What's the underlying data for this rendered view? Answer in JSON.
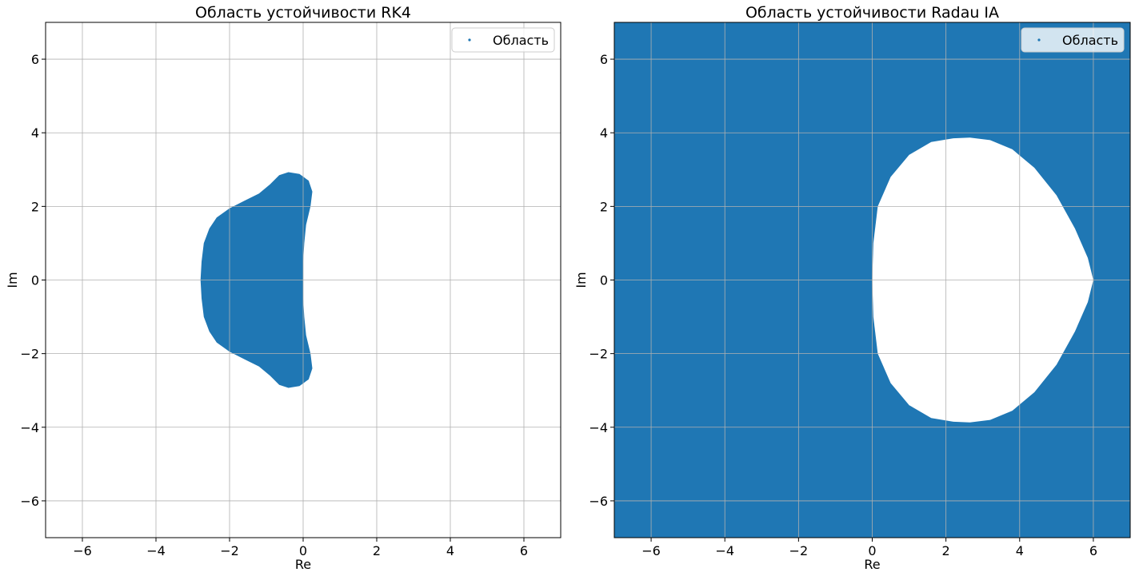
{
  "chart_data": [
    {
      "type": "scatter",
      "title": "Область устойчивости RK4",
      "xlabel": "Re",
      "ylabel": "Im",
      "xlim": [
        -7,
        7
      ],
      "ylim": [
        -7,
        7
      ],
      "xticks": [
        -6,
        -4,
        -2,
        0,
        2,
        4,
        6
      ],
      "yticks": [
        -6,
        -4,
        -2,
        0,
        2,
        4,
        6
      ],
      "grid": true,
      "legend_position": "top-right",
      "series": [
        {
          "name": "Область",
          "color": "#1f77b4",
          "fill": "inside",
          "boundary": [
            [
              -2.79,
              0.0
            ],
            [
              -2.76,
              0.5
            ],
            [
              -2.7,
              1.0
            ],
            [
              -2.55,
              1.4
            ],
            [
              -2.35,
              1.7
            ],
            [
              -2.0,
              1.95
            ],
            [
              -1.6,
              2.15
            ],
            [
              -1.2,
              2.35
            ],
            [
              -0.9,
              2.6
            ],
            [
              -0.65,
              2.85
            ],
            [
              -0.4,
              2.93
            ],
            [
              -0.1,
              2.88
            ],
            [
              0.15,
              2.7
            ],
            [
              0.25,
              2.4
            ],
            [
              0.2,
              2.0
            ],
            [
              0.08,
              1.5
            ],
            [
              0.03,
              1.0
            ],
            [
              0.0,
              0.5
            ],
            [
              0.0,
              0.0
            ],
            [
              0.0,
              -0.5
            ],
            [
              0.03,
              -1.0
            ],
            [
              0.08,
              -1.5
            ],
            [
              0.2,
              -2.0
            ],
            [
              0.25,
              -2.4
            ],
            [
              0.15,
              -2.7
            ],
            [
              -0.1,
              -2.88
            ],
            [
              -0.4,
              -2.93
            ],
            [
              -0.65,
              -2.85
            ],
            [
              -0.9,
              -2.6
            ],
            [
              -1.2,
              -2.35
            ],
            [
              -1.6,
              -2.15
            ],
            [
              -2.0,
              -1.95
            ],
            [
              -2.35,
              -1.7
            ],
            [
              -2.55,
              -1.4
            ],
            [
              -2.7,
              -1.0
            ],
            [
              -2.76,
              -0.5
            ]
          ]
        }
      ]
    },
    {
      "type": "scatter",
      "title": "Область устойчивости Radau IA",
      "xlabel": "Re",
      "ylabel": "Im",
      "xlim": [
        -7,
        7
      ],
      "ylim": [
        -7,
        7
      ],
      "xticks": [
        -6,
        -4,
        -2,
        0,
        2,
        4,
        6
      ],
      "yticks": [
        -6,
        -4,
        -2,
        0,
        2,
        4,
        6
      ],
      "grid": true,
      "legend_position": "top-right",
      "series": [
        {
          "name": "Область",
          "color": "#1f77b4",
          "fill": "outside",
          "boundary": [
            [
              0.0,
              0.0
            ],
            [
              0.03,
              1.0
            ],
            [
              0.15,
              2.0
            ],
            [
              0.5,
              2.8
            ],
            [
              1.0,
              3.4
            ],
            [
              1.6,
              3.75
            ],
            [
              2.2,
              3.85
            ],
            [
              2.65,
              3.87
            ],
            [
              3.2,
              3.8
            ],
            [
              3.8,
              3.55
            ],
            [
              4.4,
              3.05
            ],
            [
              5.0,
              2.3
            ],
            [
              5.5,
              1.4
            ],
            [
              5.85,
              0.6
            ],
            [
              6.0,
              0.0
            ],
            [
              5.85,
              -0.6
            ],
            [
              5.5,
              -1.4
            ],
            [
              5.0,
              -2.3
            ],
            [
              4.4,
              -3.05
            ],
            [
              3.8,
              -3.55
            ],
            [
              3.2,
              -3.8
            ],
            [
              2.65,
              -3.87
            ],
            [
              2.2,
              -3.85
            ],
            [
              1.6,
              -3.75
            ],
            [
              1.0,
              -3.4
            ],
            [
              0.5,
              -2.8
            ],
            [
              0.15,
              -2.0
            ],
            [
              0.03,
              -1.0
            ]
          ]
        }
      ]
    }
  ]
}
